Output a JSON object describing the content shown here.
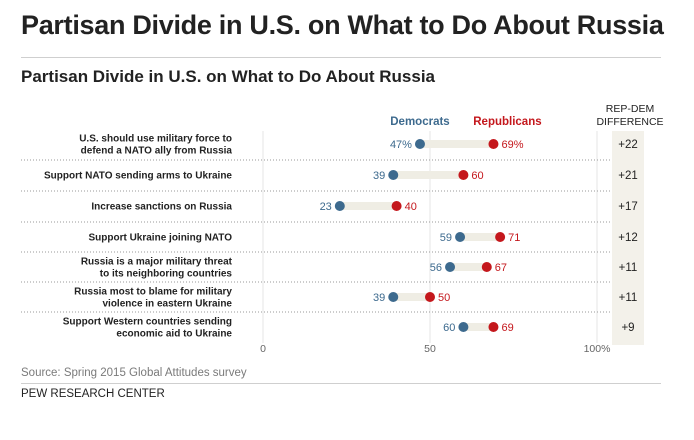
{
  "page": {
    "title": "Partisan Divide in U.S. on What to Do About Russia",
    "source": "Source: Spring 2015 Global Attitudes survey",
    "brand": "PEW RESEARCH CENTER",
    "diff_header_line1": "REP-DEM",
    "diff_header_line2": "DIFFERENCE"
  },
  "colors": {
    "democrats": "#3d6a8e",
    "republicans": "#c4171c",
    "bar": "#efede4",
    "diff_bg": "#f3f1ea"
  },
  "chart_data": {
    "type": "dot",
    "title": "Partisan Divide in U.S. on What to Do About Russia",
    "xlim": [
      0,
      100
    ],
    "x_ticks": [
      {
        "value": 0,
        "label": "0"
      },
      {
        "value": 50,
        "label": "50"
      },
      {
        "value": 100,
        "label": "100%"
      }
    ],
    "series": [
      {
        "name": "Democrats",
        "color": "#3d6a8e"
      },
      {
        "name": "Republicans",
        "color": "#c4171c"
      }
    ],
    "rows": [
      {
        "label_lines": [
          "U.S. should use military force to",
          "defend a NATO ally from Russia"
        ],
        "dem": 47,
        "rep": 69,
        "dem_label": "47%",
        "rep_label": "69%",
        "diff": "+22"
      },
      {
        "label_lines": [
          "Support NATO sending arms to Ukraine"
        ],
        "dem": 39,
        "rep": 60,
        "dem_label": "39",
        "rep_label": "60",
        "diff": "+21"
      },
      {
        "label_lines": [
          "Increase sanctions on Russia"
        ],
        "dem": 23,
        "rep": 40,
        "dem_label": "23",
        "rep_label": "40",
        "diff": "+17"
      },
      {
        "label_lines": [
          "Support Ukraine joining NATO"
        ],
        "dem": 59,
        "rep": 71,
        "dem_label": "59",
        "rep_label": "71",
        "diff": "+12"
      },
      {
        "label_lines": [
          "Russia is a major military threat",
          "to its neighboring countries"
        ],
        "dem": 56,
        "rep": 67,
        "dem_label": "56",
        "rep_label": "67",
        "diff": "+11"
      },
      {
        "label_lines": [
          "Russia most to blame for military",
          "violence in eastern Ukraine"
        ],
        "dem": 39,
        "rep": 50,
        "dem_label": "39",
        "rep_label": "50",
        "diff": "+11"
      },
      {
        "label_lines": [
          "Support Western countries sending",
          "economic aid to Ukraine"
        ],
        "dem": 60,
        "rep": 69,
        "dem_label": "60",
        "rep_label": "69",
        "diff": "+9"
      }
    ]
  }
}
